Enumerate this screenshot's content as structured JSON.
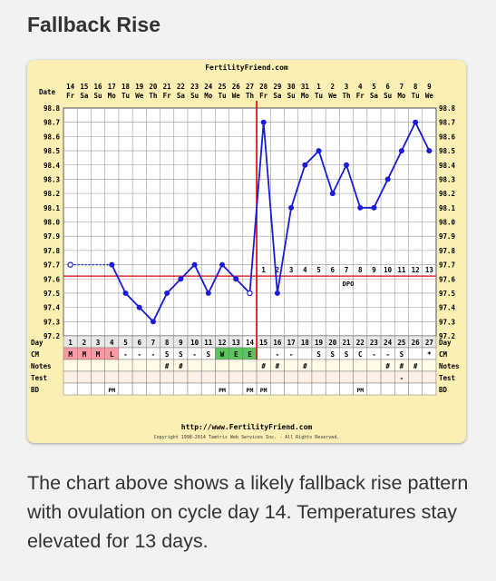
{
  "page": {
    "title": "Fallback Rise",
    "caption": "The chart above shows a likely fallback rise pattern with ovulation on cycle day 14. Temperatures stay elevated for 13 days."
  },
  "chart_data": {
    "type": "line",
    "site_header": "FertilityFriend.com",
    "footer_url": "http://www.FertilityFriend.com",
    "copyright": "Copyright 1998-2014 Tamtris Web Services Inc. - All Rights Reserved.",
    "row_labels": {
      "date": "Date",
      "day": "Day",
      "cm": "CM",
      "notes": "Notes",
      "test": "Test",
      "bd": "BD"
    },
    "dates": [
      "14",
      "15",
      "16",
      "17",
      "18",
      "19",
      "20",
      "21",
      "22",
      "23",
      "24",
      "25",
      "26",
      "27",
      "28",
      "29",
      "30",
      "31",
      "1",
      "2",
      "3",
      "4",
      "5",
      "6",
      "7",
      "8",
      "9"
    ],
    "weekdays": [
      "Fr",
      "Sa",
      "Su",
      "Mo",
      "Tu",
      "We",
      "Th",
      "Fr",
      "Sa",
      "Su",
      "Mo",
      "Tu",
      "We",
      "Th",
      "Fr",
      "Sa",
      "Su",
      "Mo",
      "Tu",
      "We",
      "Th",
      "Fr",
      "Sa",
      "Su",
      "Mo",
      "Tu",
      "We"
    ],
    "cycle_days": [
      "1",
      "2",
      "3",
      "4",
      "5",
      "6",
      "7",
      "8",
      "9",
      "10",
      "11",
      "12",
      "13",
      "14",
      "15",
      "16",
      "17",
      "18",
      "19",
      "20",
      "21",
      "22",
      "23",
      "24",
      "25",
      "26",
      "27"
    ],
    "ylim": [
      97.2,
      98.8
    ],
    "y_ticks": [
      "98.8",
      "98.7",
      "98.6",
      "98.5",
      "98.4",
      "98.3",
      "98.2",
      "98.1",
      "98.0",
      "97.9",
      "97.8",
      "97.7",
      "97.6",
      "97.5",
      "97.4",
      "97.3",
      "97.2"
    ],
    "series": [
      {
        "values": [
          97.7,
          null,
          null,
          97.7,
          97.5,
          97.4,
          97.3,
          97.5,
          97.6,
          97.7,
          97.5,
          97.7,
          97.6,
          97.5,
          98.7,
          97.5,
          98.1,
          98.4,
          98.5,
          98.2,
          98.4,
          98.1,
          98.1,
          98.3,
          98.5,
          98.7,
          98.5
        ]
      }
    ],
    "coverline": 97.62,
    "ovulation_day": 14,
    "luteal_numbers": [
      "1",
      "2",
      "3",
      "4",
      "5",
      "6",
      "7",
      "8",
      "9",
      "10",
      "11",
      "12",
      "13"
    ],
    "dpo_label": "DPO",
    "cm": [
      "M",
      "M",
      "M",
      "L",
      "-",
      "-",
      "-",
      "S",
      "S",
      "-",
      "S",
      "W",
      "E",
      "E",
      "",
      "-",
      "-",
      "",
      "S",
      "S",
      "S",
      "C",
      "-",
      "-",
      "S",
      "",
      "*"
    ],
    "cm_colors": {
      "M": "#ff9aa5",
      "L": "#ff9aa5",
      "W": "#58c65c",
      "E": "#58c65c"
    },
    "notes": [
      "",
      "",
      "",
      "",
      "",
      "",
      "",
      "#",
      "#",
      "",
      "",
      "",
      "",
      "",
      "#",
      "#",
      "",
      "#",
      "",
      "",
      "",
      "",
      "",
      "#",
      "#",
      "#",
      ""
    ],
    "test": [
      "",
      "",
      "",
      "",
      "",
      "",
      "",
      "",
      "",
      "",
      "",
      "",
      "",
      "",
      "",
      "",
      "",
      "",
      "",
      "",
      "",
      "",
      "",
      "",
      "-",
      "",
      ""
    ],
    "bd": [
      "",
      "",
      "",
      "PM",
      "",
      "",
      "",
      "",
      "",
      "",
      "",
      "PM",
      "",
      "PM",
      "PM",
      "",
      "",
      "",
      "",
      "",
      "",
      "PM",
      "",
      "",
      "",
      "",
      ""
    ],
    "colors": {
      "line": "#1b1bd8",
      "coverline": "#e03030",
      "ovulation": "#d81a1a",
      "prefill": "#1b1bd8"
    }
  }
}
